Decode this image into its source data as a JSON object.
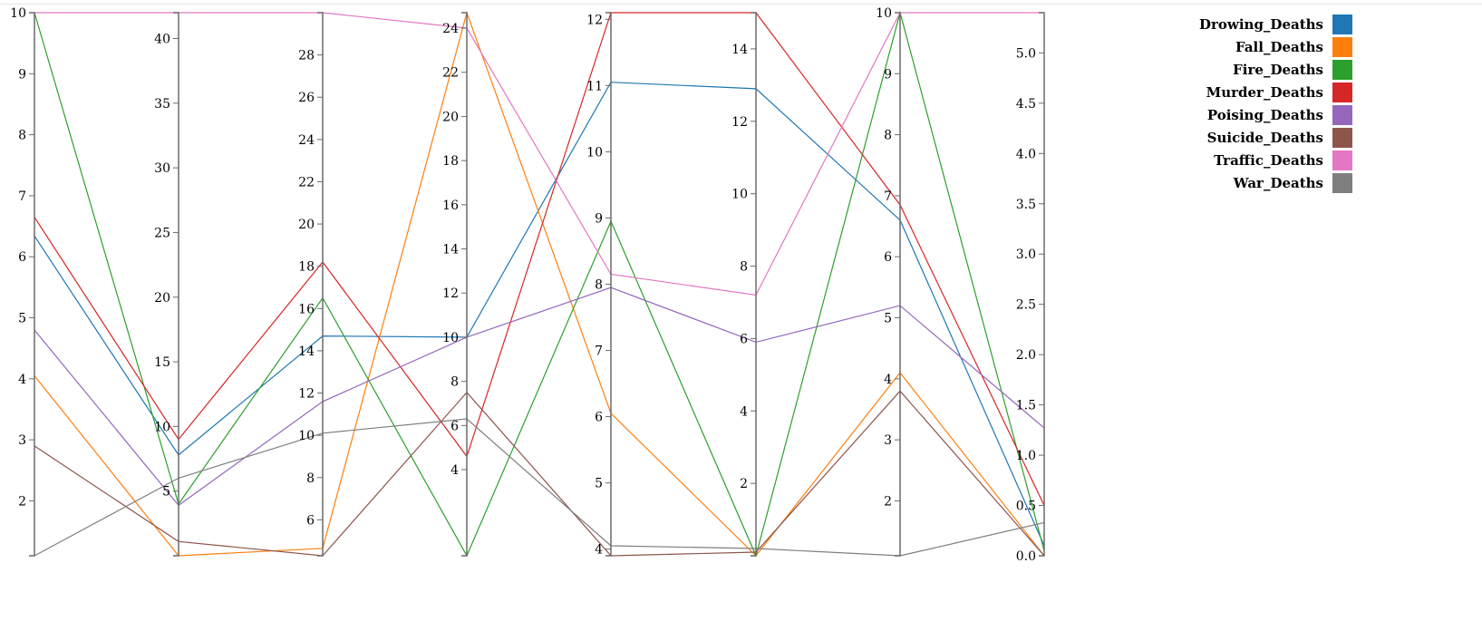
{
  "chart_data": {
    "type": "parallel-coordinates",
    "axes": [
      {
        "min": 1.1,
        "max": 10,
        "ticks": [
          2,
          3,
          4,
          5,
          6,
          7,
          8,
          9,
          10
        ]
      },
      {
        "min": 0,
        "max": 42,
        "ticks": [
          5,
          10,
          15,
          20,
          25,
          30,
          35,
          40
        ]
      },
      {
        "min": 4.3,
        "max": 30,
        "ticks": [
          6,
          8,
          10,
          12,
          14,
          16,
          18,
          20,
          22,
          24,
          26,
          28
        ]
      },
      {
        "min": 0.1,
        "max": 24.7,
        "ticks": [
          4,
          6,
          8,
          10,
          12,
          14,
          16,
          18,
          20,
          22,
          24
        ]
      },
      {
        "min": 3.9,
        "max": 12.1,
        "ticks": [
          4,
          5,
          6,
          7,
          8,
          9,
          10,
          11,
          12
        ]
      },
      {
        "min": 0,
        "max": 15,
        "ticks": [
          2,
          4,
          6,
          8,
          10,
          12,
          14
        ]
      },
      {
        "min": 1.1,
        "max": 10,
        "ticks": [
          2,
          3,
          4,
          5,
          6,
          7,
          8,
          9,
          10
        ]
      },
      {
        "min": 0,
        "max": 5.4,
        "ticks": [
          "0.0",
          "0.5",
          "1.0",
          "1.5",
          "2.0",
          "2.5",
          "3.0",
          "3.5",
          "4.0",
          "4.5",
          "5.0"
        ]
      }
    ],
    "series": [
      {
        "name": "Drowing_Deaths",
        "color": "#1f77b4",
        "values": [
          6.34,
          7.8,
          14.7,
          10.0,
          11.05,
          12.9,
          6.6,
          0.1
        ]
      },
      {
        "name": "Fall_Deaths",
        "color": "#ff7f0e",
        "values": [
          4.05,
          0.0,
          4.65,
          24.7,
          6.05,
          0.0,
          4.1,
          0.0
        ]
      },
      {
        "name": "Fire_Deaths",
        "color": "#2ca02c",
        "values": [
          10.0,
          4.0,
          16.5,
          0.1,
          8.95,
          0.0,
          10.0,
          0.05
        ]
      },
      {
        "name": "Murder_Deaths",
        "color": "#d62728",
        "values": [
          6.65,
          9.0,
          18.2,
          4.6,
          12.1,
          15.0,
          6.85,
          0.5
        ]
      },
      {
        "name": "Poising_Deaths",
        "color": "#9467bd",
        "values": [
          4.8,
          3.9,
          11.6,
          10.0,
          7.95,
          5.9,
          5.2,
          1.27
        ]
      },
      {
        "name": "Suicide_Deaths",
        "color": "#8c564b",
        "values": [
          2.9,
          1.1,
          4.3,
          7.5,
          3.9,
          0.1,
          3.8,
          0.0
        ]
      },
      {
        "name": "Traffic_Deaths",
        "color": "#e377c2",
        "values": [
          10.0,
          42,
          30.0,
          24.0,
          8.15,
          7.2,
          10.0,
          5.4
        ]
      },
      {
        "name": "War_Deaths",
        "color": "#7f7f7f",
        "values": [
          1.1,
          6.0,
          10.1,
          6.3,
          4.05,
          0.2,
          1.1,
          0.33
        ]
      }
    ],
    "legend_position": "top-right"
  }
}
